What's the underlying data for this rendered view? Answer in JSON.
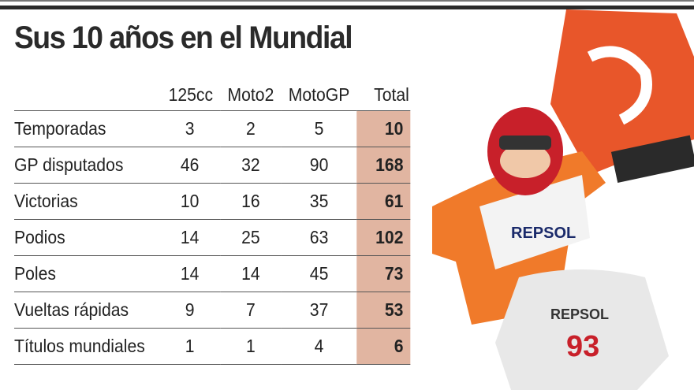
{
  "title": "Sus 10 años en el Mundial",
  "colors": {
    "total_column": "#e1b5a1",
    "flag": "#e8562a"
  },
  "chart_data": {
    "type": "table",
    "title": "Sus 10 años en el Mundial",
    "columns": [
      "125cc",
      "Moto2",
      "MotoGP",
      "Total"
    ],
    "rows": [
      {
        "label": "Temporadas",
        "values": [
          3,
          2,
          5,
          10
        ]
      },
      {
        "label": "GP disputados",
        "values": [
          46,
          32,
          90,
          168
        ]
      },
      {
        "label": "Victorias",
        "values": [
          10,
          16,
          35,
          61
        ]
      },
      {
        "label": "Podios",
        "values": [
          14,
          25,
          63,
          102
        ]
      },
      {
        "label": "Poles",
        "values": [
          14,
          14,
          45,
          73
        ]
      },
      {
        "label": "Vueltas rápidas",
        "values": [
          9,
          7,
          37,
          53
        ]
      },
      {
        "label": "Títulos mundiales",
        "values": [
          1,
          1,
          4,
          6
        ]
      }
    ]
  },
  "photo": {
    "bike_text": "REPSOL",
    "bike_number": "93",
    "suit_text": "REPSOL"
  }
}
